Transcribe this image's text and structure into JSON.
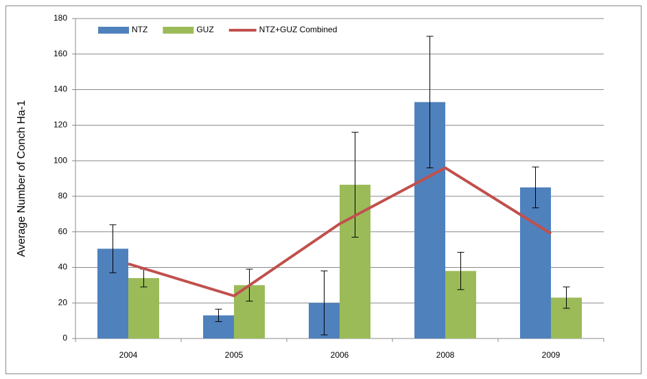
{
  "chart_data": {
    "type": "bar",
    "y_label": "Average Number of Conch Ha-1",
    "categories": [
      "2004",
      "2005",
      "2006",
      "2008",
      "2009"
    ],
    "series": [
      {
        "name": "NTZ",
        "type": "bar",
        "color": "#4f81bd",
        "values": [
          50.5,
          13,
          20,
          133,
          85
        ],
        "errors": [
          13.5,
          3.5,
          18,
          37,
          11.5
        ]
      },
      {
        "name": "GUZ",
        "type": "bar",
        "color": "#9bbb59",
        "values": [
          34,
          30,
          86.5,
          38,
          23
        ],
        "errors": [
          5,
          9,
          29.5,
          10.5,
          6
        ]
      },
      {
        "name": "NTZ+GUZ Combined",
        "type": "line",
        "color": "#c0504d",
        "values": [
          42,
          24,
          64.5,
          96,
          59
        ]
      }
    ],
    "ylim": [
      0,
      180
    ],
    "yticks": [
      0,
      20,
      40,
      60,
      80,
      100,
      120,
      140,
      160,
      180
    ],
    "grid": true,
    "legend": "top-left"
  }
}
